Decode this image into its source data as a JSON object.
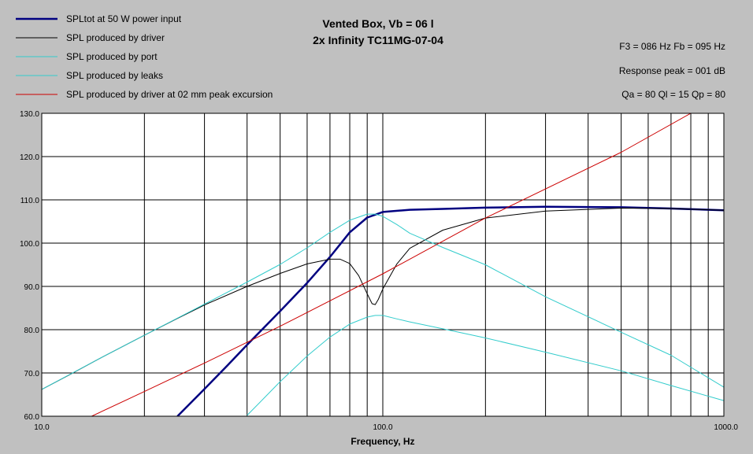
{
  "chart_data": {
    "type": "line",
    "title": [
      "Vented Box, Vb = 06 l",
      "2x Infinity TC11MG-07-04"
    ],
    "xlabel": "Frequency, Hz",
    "ylabel": "",
    "xscale": "log",
    "xlim": [
      10,
      1000
    ],
    "ylim": [
      60,
      130
    ],
    "grid": true,
    "legend_position": "top-left",
    "x_ticks": [
      10,
      100,
      1000
    ],
    "x_tick_labels": [
      "10.0",
      "100.0",
      "1000.0"
    ],
    "y_ticks": [
      60,
      70,
      80,
      90,
      100,
      110,
      120,
      130
    ],
    "y_tick_labels": [
      "60.0",
      "70.0",
      "80.0",
      "90.0",
      "100.0",
      "110.0",
      "120.0",
      "130.0"
    ],
    "info": [
      "F3 = 086 Hz  Fb = 095 Hz",
      "Response peak = 001 dB",
      "Qa = 80  Ql = 15  Qp = 80"
    ],
    "series": [
      {
        "name": "SPLtot at 50 W power input",
        "color": "#000080",
        "width": 2.5,
        "x": [
          25,
          30,
          35,
          40,
          50,
          60,
          70,
          80,
          90,
          100,
          120,
          150,
          200,
          300,
          500,
          700,
          1000
        ],
        "y": [
          60,
          66.3,
          71.7,
          76.5,
          84.3,
          90.8,
          96.8,
          102.5,
          105.9,
          107.2,
          107.7,
          107.9,
          108.2,
          108.4,
          108.3,
          108.0,
          107.6
        ]
      },
      {
        "name": "SPL produced by driver",
        "color": "#000000",
        "width": 1,
        "x": [
          10,
          12,
          15,
          20,
          25,
          30,
          40,
          50,
          60,
          70,
          75,
          80,
          85,
          90,
          93,
          95,
          97,
          100,
          110,
          120,
          150,
          200,
          300,
          500,
          700,
          1000
        ],
        "y": [
          66.2,
          69.5,
          73.6,
          78.7,
          82.6,
          85.7,
          90.0,
          93.0,
          95.2,
          96.3,
          96.3,
          95.3,
          92.5,
          88.3,
          86.0,
          85.8,
          87.0,
          89.4,
          95.2,
          98.8,
          103.0,
          105.8,
          107.4,
          108.1,
          108.0,
          107.6
        ]
      },
      {
        "name": "SPL produced by port",
        "color": "#33cccc",
        "width": 1,
        "x": [
          10,
          15,
          20,
          30,
          40,
          50,
          60,
          70,
          80,
          90,
          95,
          100,
          110,
          120,
          150,
          200,
          300,
          500,
          700,
          1000
        ],
        "y": [
          66.2,
          73.6,
          78.7,
          85.9,
          91.0,
          95.1,
          98.9,
          102.5,
          105.3,
          106.7,
          106.7,
          106.2,
          104.3,
          102.3,
          99.0,
          95.0,
          87.6,
          79.4,
          74.1,
          66.7
        ]
      },
      {
        "name": "SPL produced by leaks",
        "color": "#33cccc",
        "width": 1,
        "x": [
          40,
          45,
          50,
          60,
          70,
          80,
          90,
          95,
          100,
          110,
          120,
          150,
          200,
          300,
          500,
          700,
          1000
        ],
        "y": [
          60.2,
          64.3,
          68.0,
          73.9,
          78.3,
          81.3,
          82.9,
          83.3,
          83.3,
          82.5,
          81.8,
          80.2,
          78.1,
          74.8,
          70.5,
          67.1,
          63.6
        ]
      },
      {
        "name": "SPL produced by driver at 02 mm peak excursion",
        "color": "#cc0000",
        "width": 1,
        "x": [
          14,
          20,
          30,
          50,
          100,
          200,
          500,
          800
        ],
        "y": [
          60,
          65.7,
          72.3,
          80.8,
          92.9,
          105.8,
          121.0,
          130
        ]
      }
    ]
  }
}
